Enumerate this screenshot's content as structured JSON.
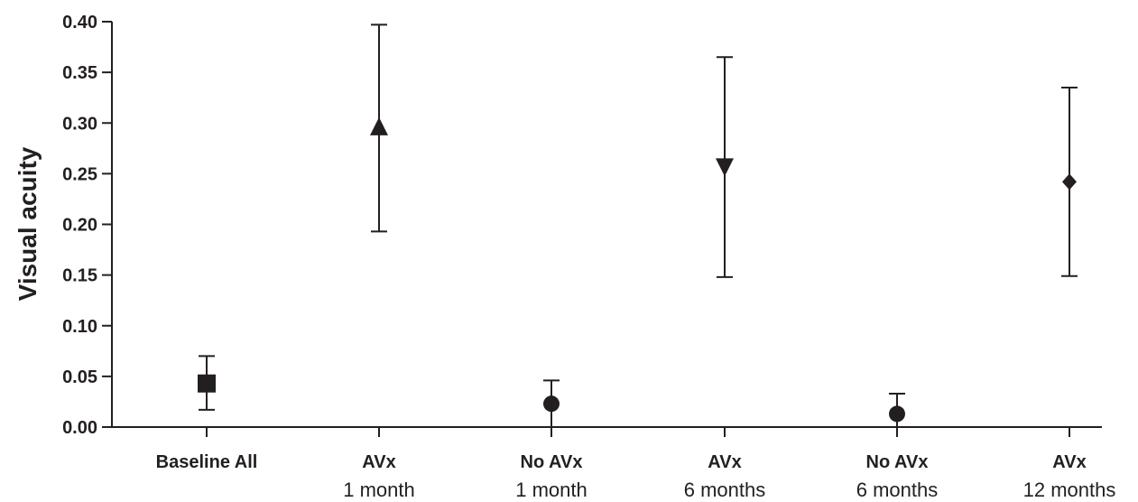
{
  "chart_data": {
    "type": "scatter",
    "ylabel": "Visual acuity",
    "xlabel": "",
    "ylim": [
      0,
      0.4
    ],
    "yticks": [
      "0.00",
      "0.05",
      "0.10",
      "0.15",
      "0.20",
      "0.25",
      "0.30",
      "0.35",
      "0.40"
    ],
    "grid": false,
    "categories": [
      {
        "line1": "Baseline All",
        "line2": ""
      },
      {
        "line1": "AVx",
        "line2": "1 month"
      },
      {
        "line1": "No AVx",
        "line2": "1 month"
      },
      {
        "line1": "AVx",
        "line2": "6 months"
      },
      {
        "line1": "No AVx",
        "line2": "6 months"
      },
      {
        "line1": "AVx",
        "line2": "12 months"
      }
    ],
    "points": [
      {
        "value": 0.043,
        "lower": 0.017,
        "upper": 0.07,
        "marker": "square"
      },
      {
        "value": 0.295,
        "lower": 0.193,
        "upper": 0.397,
        "marker": "triangle-up"
      },
      {
        "value": 0.023,
        "lower": 0.0,
        "upper": 0.046,
        "marker": "circle"
      },
      {
        "value": 0.258,
        "lower": 0.148,
        "upper": 0.365,
        "marker": "triangle-down"
      },
      {
        "value": 0.013,
        "lower": 0.0,
        "upper": 0.033,
        "marker": "circle"
      },
      {
        "value": 0.242,
        "lower": 0.149,
        "upper": 0.335,
        "marker": "diamond"
      }
    ],
    "colors": {
      "ink": "#231f20"
    }
  }
}
